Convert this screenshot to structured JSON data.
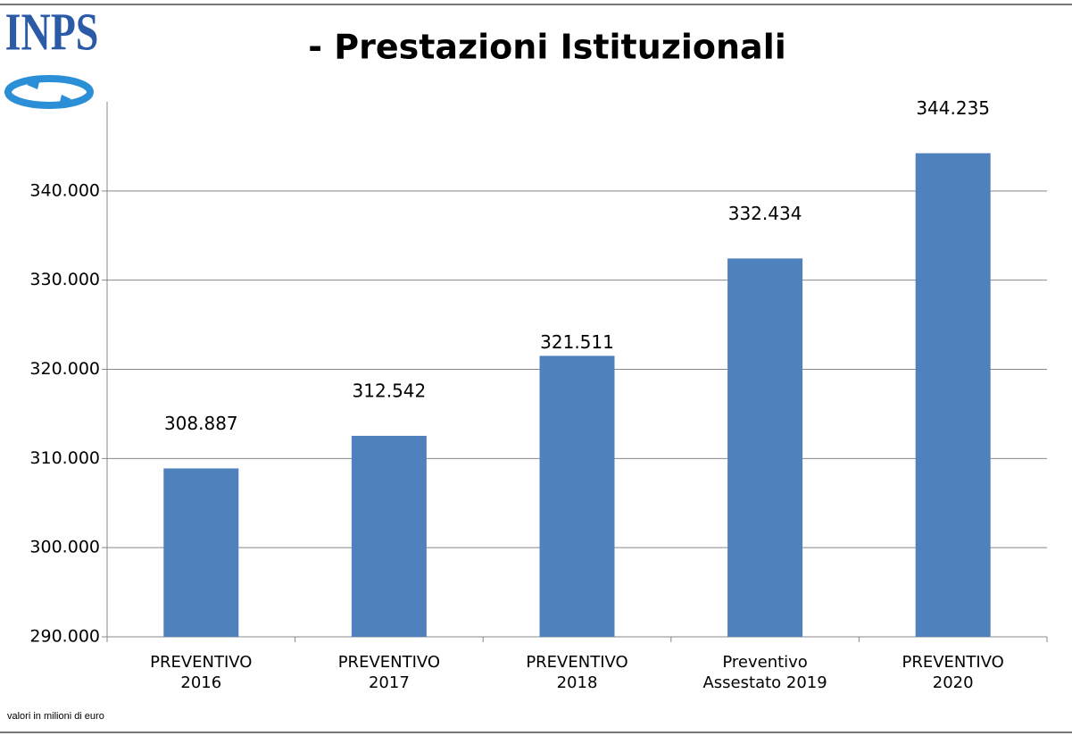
{
  "logo": "INPS",
  "footnote": "valori in milioni di euro",
  "chart_data": {
    "type": "bar",
    "title": "- Prestazioni Istituzionali",
    "categories": [
      "PREVENTIVO 2016",
      "PREVENTIVO 2017",
      "PREVENTIVO 2018",
      "Preventivo Assestato 2019",
      "PREVENTIVO 2020"
    ],
    "values": [
      308887,
      312542,
      321511,
      332434,
      344235
    ],
    "value_labels": [
      "308.887",
      "312.542",
      "321.511",
      "332.434",
      "344.235"
    ],
    "color": "#4f81bd",
    "ylim": [
      290000,
      350000
    ],
    "yticks": [
      {
        "value": 290000,
        "label": "290.000"
      },
      {
        "value": 300000,
        "label": "300.000"
      },
      {
        "value": 310000,
        "label": "310.000"
      },
      {
        "value": 320000,
        "label": "320.000"
      },
      {
        "value": 330000,
        "label": "330.000"
      },
      {
        "value": 340000,
        "label": "340.000"
      }
    ],
    "grid": true
  }
}
